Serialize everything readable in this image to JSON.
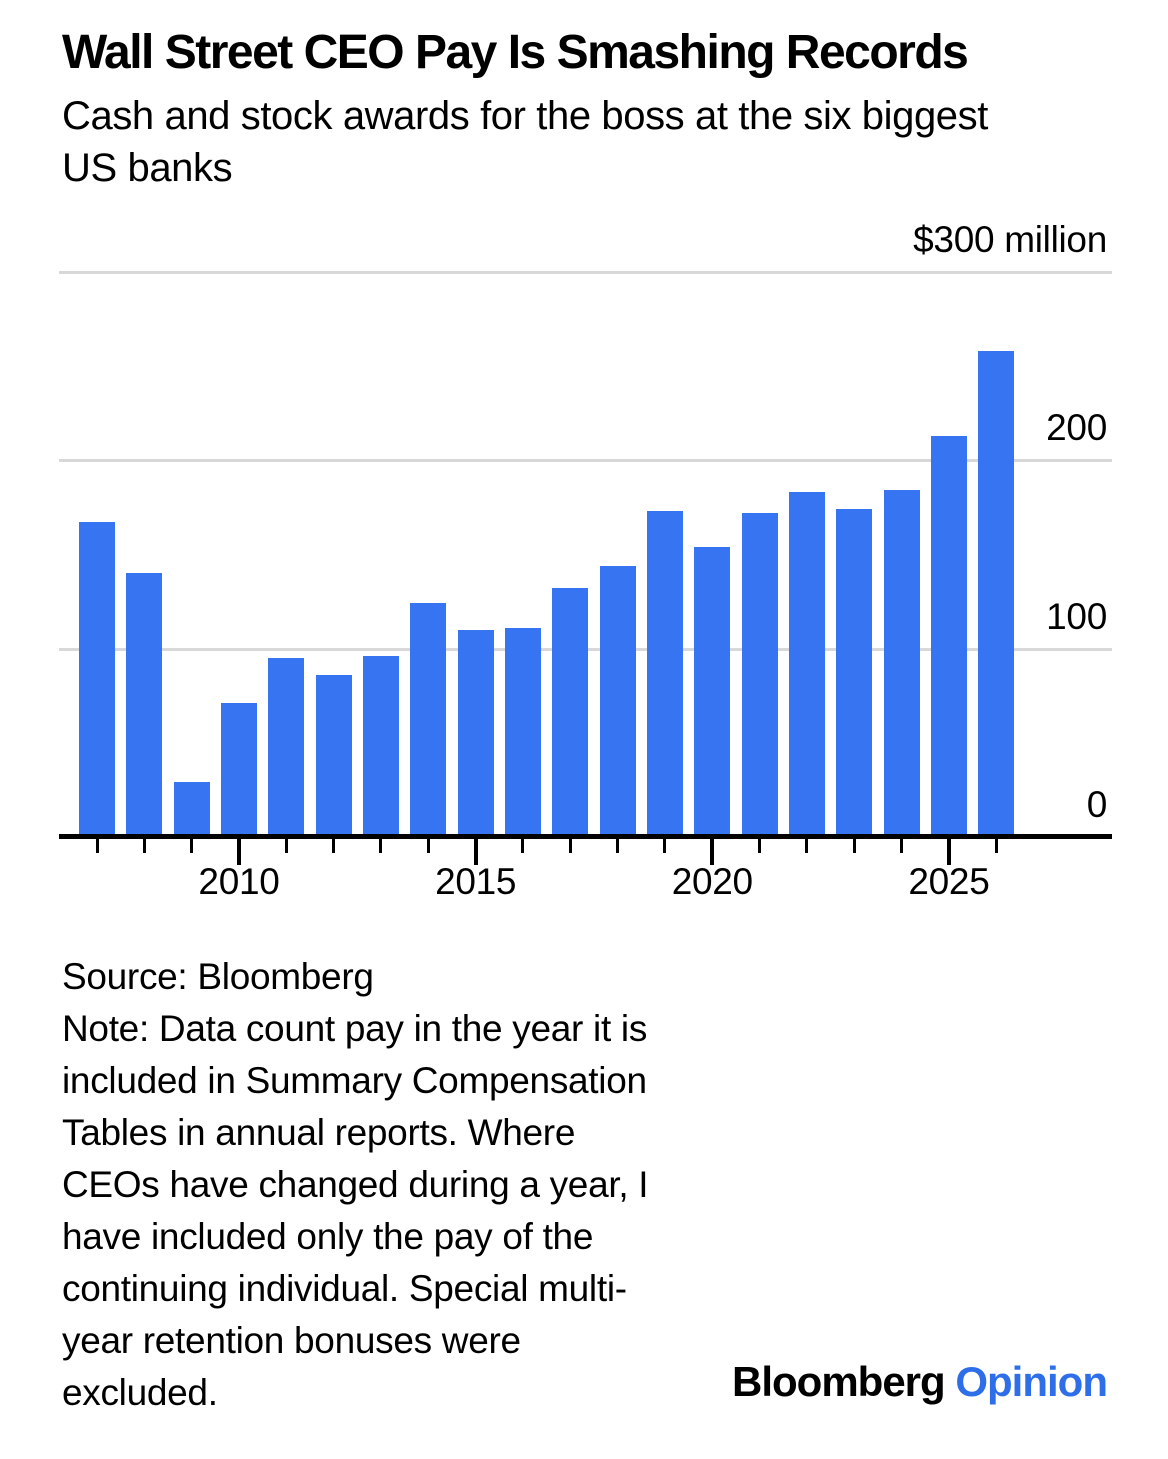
{
  "header": {
    "title": "Wall Street CEO Pay Is Smashing Records",
    "subtitle": "Cash and stock awards for the boss at the six biggest\nUS banks"
  },
  "chart_data": {
    "type": "bar",
    "title": "Wall Street CEO Pay Is Smashing Records",
    "subtitle": "Cash and stock awards for the boss at the six biggest US banks",
    "unit_label": "$300 million",
    "categories": [
      2007,
      2008,
      2009,
      2010,
      2011,
      2012,
      2013,
      2014,
      2015,
      2016,
      2017,
      2018,
      2019,
      2020,
      2021,
      2022,
      2023,
      2024,
      2025,
      2026
    ],
    "values": [
      167,
      140,
      29,
      71,
      95,
      86,
      96,
      124,
      110,
      111,
      132,
      144,
      173,
      154,
      172,
      183,
      174,
      184,
      213,
      258
    ],
    "ylabel": "",
    "xlabel": "",
    "ylim": [
      0,
      300
    ],
    "yticks": [
      0,
      100,
      200,
      300
    ],
    "ytick_labels": [
      "0",
      "100",
      "200",
      "$300 million"
    ],
    "xticks": [
      2010,
      2015,
      2020,
      2025
    ],
    "xtick_labels": [
      "2010",
      "2015",
      "2020",
      "2025"
    ],
    "grid": true,
    "legend": "none",
    "bar_color": "#3774f1",
    "gridline_color": "#d8d8d8",
    "axis_color": "#000000"
  },
  "footer": {
    "source": "Source: Bloomberg",
    "note": "Note: Data count pay in the year it is\nincluded in Summary Compensation\nTables in annual reports. Where\nCEOs have changed during a year, I\nhave included only the pay of the\ncontinuing individual. Special multi-\nyear retention bonuses were\nexcluded.",
    "logo_bloomberg": "Bloomberg",
    "logo_opinion": "Opinion",
    "opinion_color": "#2e6fe9"
  }
}
